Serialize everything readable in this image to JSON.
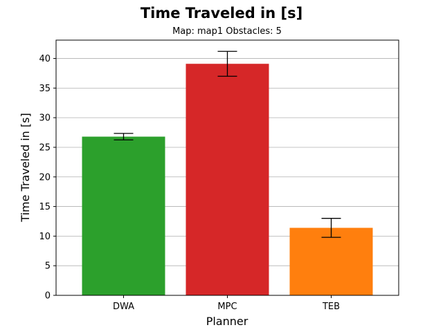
{
  "chart_data": {
    "type": "bar",
    "title": "Time Traveled in [s]",
    "subtitle": "Map: map1 Obstacles: 5",
    "xlabel": "Planner",
    "ylabel": "Time Traveled in [s]",
    "categories": [
      "DWA",
      "MPC",
      "TEB"
    ],
    "values": [
      26.8,
      39.1,
      11.4
    ],
    "errors": [
      0.55,
      2.1,
      1.6
    ],
    "colors": [
      "#2ca02c",
      "#d62728",
      "#ff7f0e"
    ],
    "ylim": [
      0,
      43.1
    ],
    "yticks": [
      0,
      5,
      10,
      15,
      20,
      25,
      30,
      35,
      40
    ],
    "grid": "y"
  }
}
